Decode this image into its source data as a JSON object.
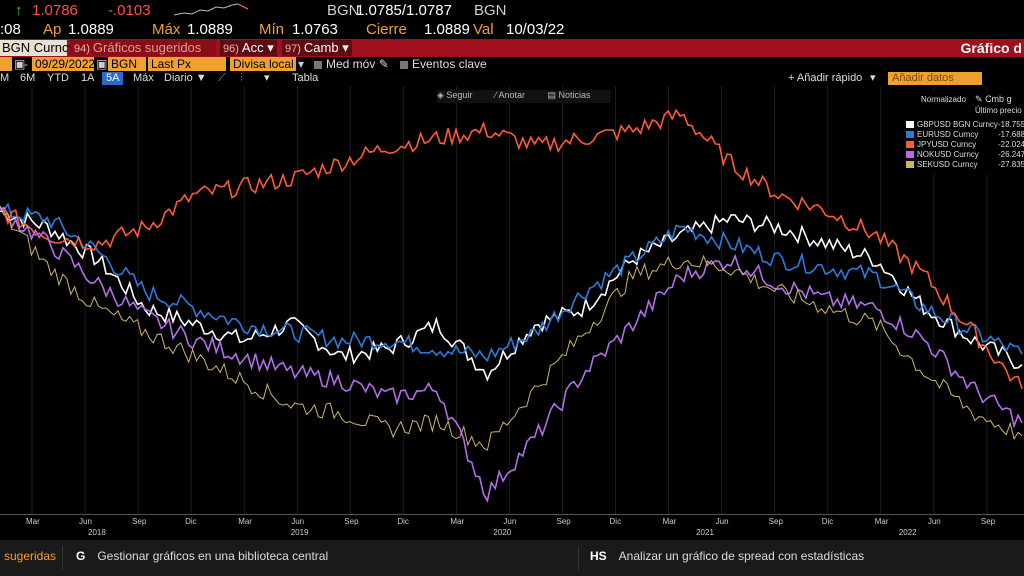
{
  "quote": {
    "arrow": "↑",
    "last": "1.0786",
    "change": "-.0103",
    "source": "BGN",
    "bid_ask": "1.0785/1.0787",
    "source2": "BGN"
  },
  "quote_row2": {
    "time": ":08",
    "open_label": "Ap",
    "open": "1.0889",
    "max_label": "Máx",
    "max": "1.0889",
    "min_label": "Mín",
    "min": "1.0763",
    "close_label": "Cierre",
    "close": "1.0889",
    "val_label": "Val",
    "date": "10/03/22"
  },
  "toolbar": {
    "ticker": "BGN Curncy",
    "suggested_num": "94)",
    "suggested": "Gráficos sugeridos",
    "acc_num": "96)",
    "acc": "Acc",
    "camb_num": "97)",
    "camb": "Camb",
    "right_title": "Gráfico d"
  },
  "settings": {
    "dash": "-",
    "end_date": "09/29/2022",
    "source": "BGN",
    "field": "Last Px",
    "currency": "Divisa local",
    "moving_avg": "Med móv",
    "key_events": "Eventos clave"
  },
  "periods": {
    "items": [
      "M",
      "6M",
      "YTD",
      "1A",
      "5A",
      "Máx"
    ],
    "active": "5A",
    "frequency": "Diario",
    "table": "Tabla",
    "quick_add": "+ Añadir rápido",
    "add_data": "Añadir datos"
  },
  "chart_tools": {
    "follow": "Seguir",
    "annotate": "Anotar",
    "news": "Noticias"
  },
  "legend": {
    "header_norm": "Normalizado",
    "header_cmb": "Cmb g",
    "header_sub": "Último precio"
  },
  "chart_data": {
    "type": "line",
    "title": "",
    "xlabel": "",
    "ylabel": "",
    "x_months": [
      "Mar",
      "Jun",
      "Sep",
      "Dic",
      "Mar",
      "Jun",
      "Sep",
      "Dic",
      "Mar",
      "Jun",
      "Sep",
      "Dic",
      "Mar",
      "Jun",
      "Sep",
      "Dic",
      "Mar",
      "Jun",
      "Sep"
    ],
    "x_years": [
      "2018",
      "2019",
      "2020",
      "2021",
      "2022"
    ],
    "x": [
      "2017-10",
      "2018-01",
      "2018-04",
      "2018-07",
      "2018-10",
      "2019-01",
      "2019-04",
      "2019-07",
      "2019-10",
      "2020-01",
      "2020-03",
      "2020-04",
      "2020-07",
      "2020-10",
      "2021-01",
      "2021-04",
      "2021-07",
      "2021-10",
      "2022-01",
      "2022-04",
      "2022-07",
      "2022-09"
    ],
    "series": [
      {
        "name": "GBPUSD BGN Curncy",
        "color": "#ffffff",
        "last_label": "-18.7556",
        "values": [
          0,
          -2,
          -6,
          -12,
          -14,
          -16,
          -14,
          -18,
          -17,
          -14,
          -20,
          -14,
          -12,
          -6,
          -3,
          -1,
          -2,
          -4,
          -6,
          -12,
          -16,
          -19
        ]
      },
      {
        "name": "EURUSD Curncy",
        "color": "#2e7ad8",
        "last_label": "-17.6883",
        "values": [
          0,
          -1,
          -5,
          -10,
          -12,
          -14,
          -15,
          -16,
          -16,
          -17,
          -18,
          -15,
          -10,
          -6,
          -2,
          -4,
          -6,
          -7,
          -8,
          -12,
          -15,
          -17.7
        ]
      },
      {
        "name": "JPYUSD Curncy",
        "color": "#ff5a36",
        "last_label": "-22.0248",
        "values": [
          0,
          -3,
          -4,
          -2,
          2,
          3,
          4,
          6,
          8,
          9,
          10,
          8,
          9,
          10,
          12,
          6,
          2,
          0,
          -3,
          -8,
          -15,
          -22
        ]
      },
      {
        "name": "NOKUSD Curncy",
        "color": "#b26ee8",
        "last_label": "-26.2475",
        "values": [
          0,
          -4,
          -9,
          -13,
          -16,
          -18,
          -20,
          -21,
          -23,
          -22,
          -35,
          -28,
          -20,
          -14,
          -8,
          -6,
          -9,
          -11,
          -12,
          -16,
          -22,
          -26.2
        ]
      },
      {
        "name": "SEKUSD Curncy",
        "color": "#cdb56a",
        "last_label": "-27.8350",
        "values": [
          0,
          -7,
          -12,
          -15,
          -18,
          -21,
          -24,
          -25,
          -27,
          -26,
          -29,
          -22,
          -15,
          -8,
          -6,
          -7,
          -10,
          -12,
          -14,
          -20,
          -25,
          -27.8
        ]
      }
    ],
    "ylim": [
      -36,
      14
    ],
    "grid": true,
    "legend_position": "top-right"
  },
  "bottom": {
    "left_text": "sugeridas",
    "g_key": "G",
    "g_text": "Gestionar gráficos en una biblioteca central",
    "hs_key": "HS",
    "hs_text": "Analizar un gráfico de spread con estadísticas"
  }
}
